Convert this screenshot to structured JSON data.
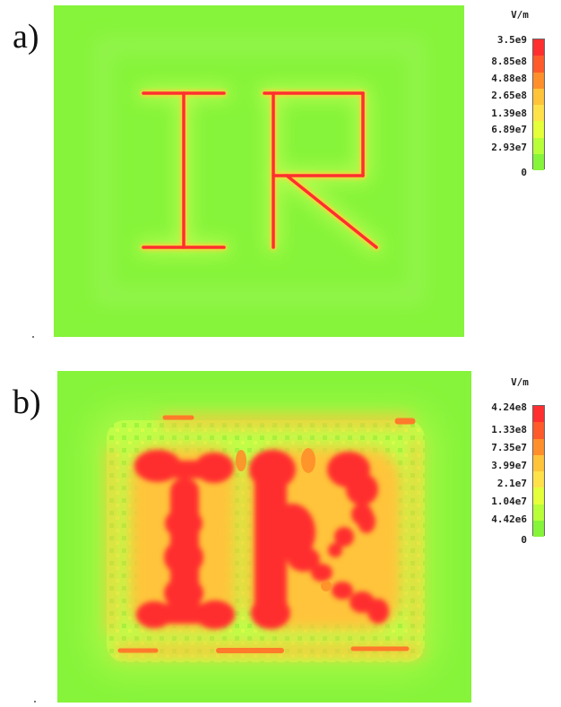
{
  "panels": [
    {
      "label": "a)",
      "unit": "V/m",
      "ticks": [
        "3.5e9",
        "8.85e8",
        "4.88e8",
        "2.65e8",
        "1.39e8",
        "6.89e7",
        "2.93e7",
        "0"
      ],
      "colors": [
        "#ff2f2f",
        "#ff5b2a",
        "#ff8f2a",
        "#ffc43a",
        "#ffe24a",
        "#e5ff3a",
        "#b8ff3a",
        "#86f43a"
      ]
    },
    {
      "label": "b)",
      "unit": "V/m",
      "ticks": [
        "4.24e8",
        "1.33e8",
        "7.35e7",
        "3.99e7",
        "2.1e7",
        "1.04e7",
        "4.42e6",
        "0"
      ],
      "colors": [
        "#ff2f2f",
        "#ff5b2a",
        "#ff8f2a",
        "#ffc43a",
        "#ffe24a",
        "#e5ff3a",
        "#b8ff3a",
        "#86f43a"
      ]
    }
  ]
}
